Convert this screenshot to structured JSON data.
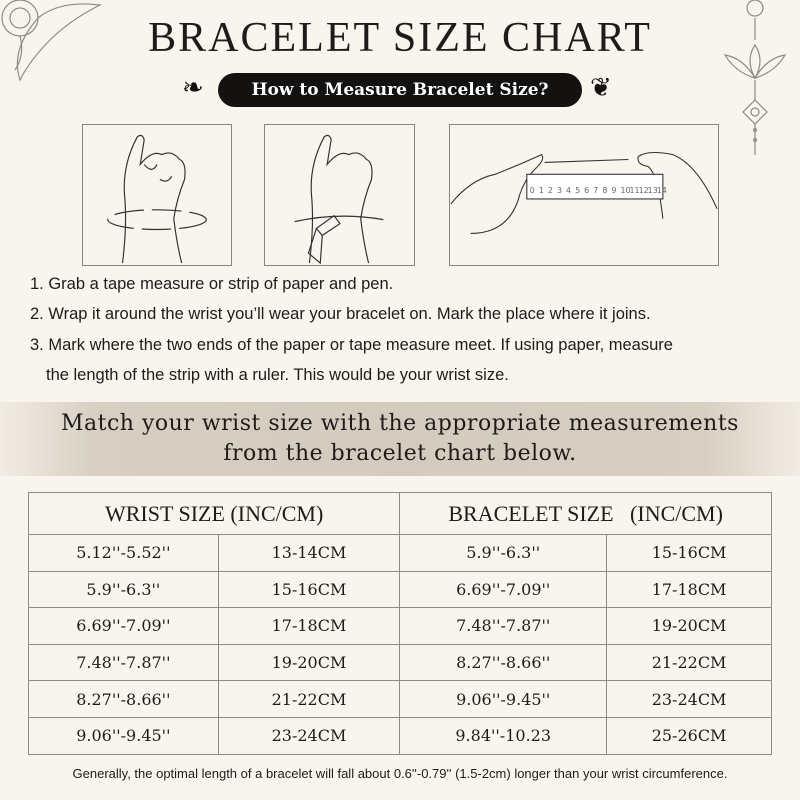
{
  "title": "BRACELET SIZE CHART",
  "subtitle": "How to Measure Bracelet Size?",
  "ruler_numbers": [
    "0",
    "1",
    "2",
    "3",
    "4",
    "5",
    "6",
    "7",
    "8",
    "9",
    "10",
    "11",
    "12",
    "13",
    "14"
  ],
  "steps": [
    "1. Grab a tape measure or strip of paper and pen.",
    "2. Wrap it around the wrist you’ll wear your bracelet on. Mark the place where it joins.",
    "3. Mark where the two ends of the paper or tape measure meet. If using paper, measure",
    "the length of the strip with a ruler. This would be your wrist size."
  ],
  "banner": {
    "line1": "Match your wrist size with the appropriate measurements",
    "line2": "from the bracelet chart below."
  },
  "table": {
    "headers": [
      "WRIST SIZE (INC/CM)",
      "BRACELET SIZE   (INC/CM)"
    ],
    "rows": [
      [
        "5.12''-5.52''",
        "13-14CM",
        "5.9''-6.3''",
        "15-16CM"
      ],
      [
        "5.9''-6.3''",
        "15-16CM",
        "6.69''-7.09''",
        "17-18CM"
      ],
      [
        "6.69''-7.09''",
        "17-18CM",
        "7.48''-7.87''",
        "19-20CM"
      ],
      [
        "7.48''-7.87''",
        "19-20CM",
        "8.27''-8.66''",
        "21-22CM"
      ],
      [
        "8.27''-8.66''",
        "21-22CM",
        "9.06''-9.45''",
        "23-24CM"
      ],
      [
        "9.06''-9.45''",
        "23-24CM",
        "9.84''-10.23",
        "25-26CM"
      ]
    ]
  },
  "footer": "Generally, the optimal length of a bracelet will fall about 0.6''-0.79'' (1.5-2cm) longer than your wrist circumference."
}
